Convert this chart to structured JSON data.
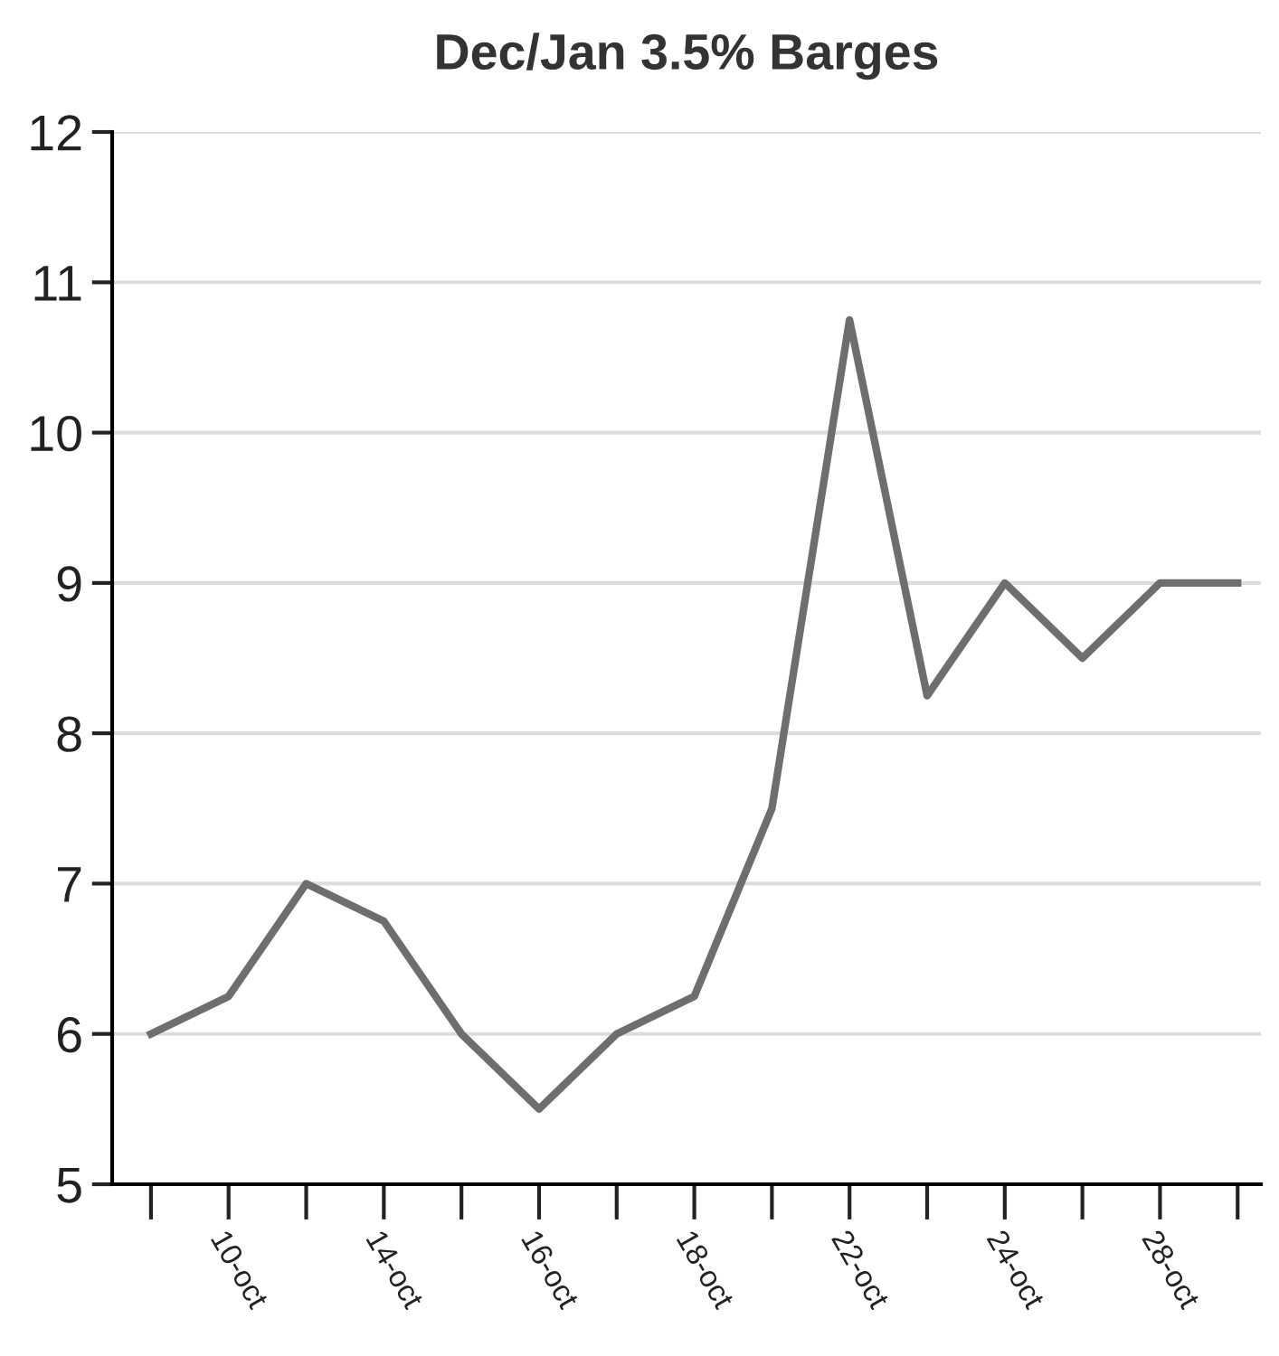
{
  "chart_data": {
    "type": "line",
    "title": "Dec/Jan 3.5% Barges",
    "categories": [
      null,
      "10-oct",
      null,
      "14-oct",
      null,
      "16-oct",
      null,
      "18-oct",
      null,
      "22-oct",
      null,
      "24-oct",
      null,
      "28-oct",
      null
    ],
    "series": [
      {
        "color": "#6e6e6e",
        "values": [
          6.0,
          6.25,
          7.0,
          6.75,
          6.0,
          5.5,
          6.0,
          6.25,
          7.5,
          10.75,
          8.25,
          9.0,
          8.5,
          9.0,
          9.0
        ]
      }
    ],
    "ylim": [
      5,
      12
    ],
    "yticks": [
      5,
      6,
      7,
      8,
      9,
      10,
      11,
      12
    ],
    "grid": "y",
    "marker": "none",
    "line_style": "solid"
  }
}
